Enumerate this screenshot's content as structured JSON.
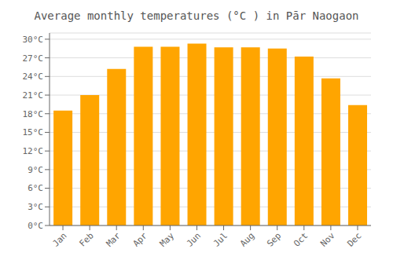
{
  "chart_data": {
    "type": "bar",
    "title": "Average monthly temperatures (°C ) in Pār Naogaon",
    "categories": [
      "Jan",
      "Feb",
      "Mar",
      "Apr",
      "May",
      "Jun",
      "Jul",
      "Aug",
      "Sep",
      "Oct",
      "Nov",
      "Dec"
    ],
    "values": [
      18.5,
      21.0,
      25.2,
      28.8,
      28.8,
      29.3,
      28.7,
      28.7,
      28.5,
      27.2,
      23.7,
      19.4
    ],
    "color": "#FFA500",
    "ylim": [
      0,
      31
    ],
    "yticks": [
      {
        "value": 0,
        "label": "0°C"
      },
      {
        "value": 3,
        "label": "3°C"
      },
      {
        "value": 6,
        "label": "6°C"
      },
      {
        "value": 9,
        "label": "9°C"
      },
      {
        "value": 12,
        "label": "12°C"
      },
      {
        "value": 15,
        "label": "15°C"
      },
      {
        "value": 18,
        "label": "18°C"
      },
      {
        "value": 21,
        "label": "21°C"
      },
      {
        "value": 24,
        "label": "24°C"
      },
      {
        "value": 27,
        "label": "27°C"
      },
      {
        "value": 30,
        "label": "30°C"
      }
    ],
    "grid": true
  }
}
